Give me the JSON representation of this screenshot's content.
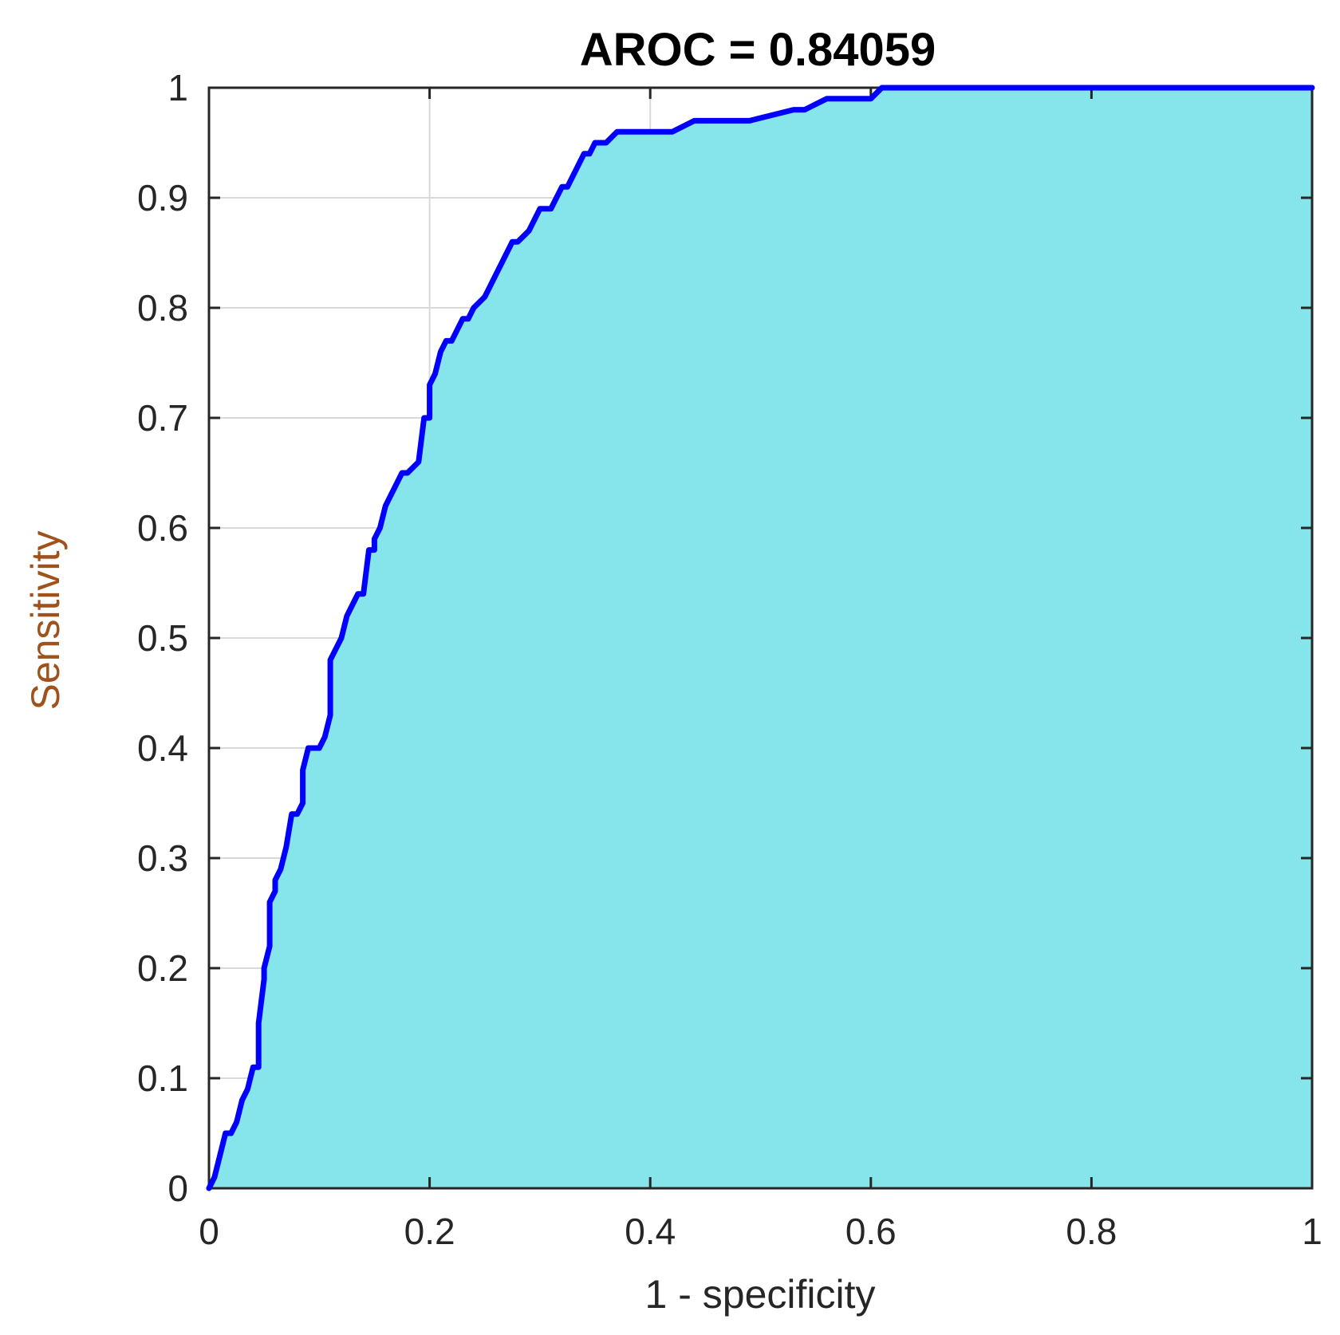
{
  "chart_data": {
    "type": "area",
    "title": "AROC = 0.84059",
    "xlabel": "1 - specificity",
    "ylabel": "Sensitivity",
    "xlim": [
      0,
      1
    ],
    "ylim": [
      0,
      1
    ],
    "xticks": [
      0,
      0.2,
      0.4,
      0.6,
      0.8,
      1
    ],
    "xtick_labels": [
      "0",
      "0.2",
      "0.4",
      "0.6",
      "0.8",
      "1"
    ],
    "yticks": [
      0,
      0.1,
      0.2,
      0.3,
      0.4,
      0.5,
      0.6,
      0.7,
      0.8,
      0.9,
      1
    ],
    "ytick_labels": [
      "0",
      "0.1",
      "0.2",
      "0.3",
      "0.4",
      "0.5",
      "0.6",
      "0.7",
      "0.8",
      "0.9",
      "1"
    ],
    "grid": true,
    "colors": {
      "curve": "#0000ff",
      "fill": "#85e5ea",
      "ylabel": "#a0521d",
      "axis": "#262626"
    },
    "series": [
      {
        "x": [
          0,
          0.005,
          0.01,
          0.015,
          0.02,
          0.025,
          0.03,
          0.035,
          0.04,
          0.045,
          0.045,
          0.05,
          0.05,
          0.055,
          0.055,
          0.06,
          0.06,
          0.065,
          0.07,
          0.075,
          0.08,
          0.085,
          0.085,
          0.09,
          0.09,
          0.095,
          0.1,
          0.105,
          0.11,
          0.11,
          0.115,
          0.12,
          0.125,
          0.13,
          0.13,
          0.135,
          0.14,
          0.145,
          0.15,
          0.15,
          0.155,
          0.16,
          0.165,
          0.17,
          0.175,
          0.18,
          0.19,
          0.195,
          0.2,
          0.2,
          0.205,
          0.21,
          0.215,
          0.22,
          0.23,
          0.235,
          0.24,
          0.25,
          0.255,
          0.26,
          0.265,
          0.27,
          0.275,
          0.28,
          0.29,
          0.3,
          0.305,
          0.31,
          0.32,
          0.325,
          0.33,
          0.34,
          0.345,
          0.35,
          0.36,
          0.37,
          0.375,
          0.38,
          0.4,
          0.42,
          0.44,
          0.45,
          0.47,
          0.49,
          0.51,
          0.53,
          0.54,
          0.56,
          0.58,
          0.6,
          0.61,
          0.62,
          0.7,
          0.8,
          0.8,
          0.9,
          1
        ],
        "y": [
          0,
          0.01,
          0.03,
          0.05,
          0.05,
          0.06,
          0.08,
          0.09,
          0.11,
          0.11,
          0.15,
          0.19,
          0.2,
          0.22,
          0.26,
          0.27,
          0.28,
          0.29,
          0.31,
          0.34,
          0.34,
          0.35,
          0.38,
          0.4,
          0.4,
          0.4,
          0.4,
          0.41,
          0.43,
          0.48,
          0.49,
          0.5,
          0.52,
          0.53,
          0.53,
          0.54,
          0.54,
          0.58,
          0.58,
          0.59,
          0.6,
          0.62,
          0.63,
          0.64,
          0.65,
          0.65,
          0.66,
          0.7,
          0.7,
          0.73,
          0.74,
          0.76,
          0.77,
          0.77,
          0.79,
          0.79,
          0.8,
          0.81,
          0.82,
          0.83,
          0.84,
          0.85,
          0.86,
          0.86,
          0.87,
          0.89,
          0.89,
          0.89,
          0.91,
          0.91,
          0.92,
          0.94,
          0.94,
          0.95,
          0.95,
          0.96,
          0.96,
          0.96,
          0.96,
          0.96,
          0.97,
          0.97,
          0.97,
          0.97,
          0.975,
          0.98,
          0.98,
          0.99,
          0.99,
          0.99,
          1.0,
          1.0,
          1.0,
          1.0,
          1.0,
          1.0,
          1.0
        ]
      }
    ]
  }
}
